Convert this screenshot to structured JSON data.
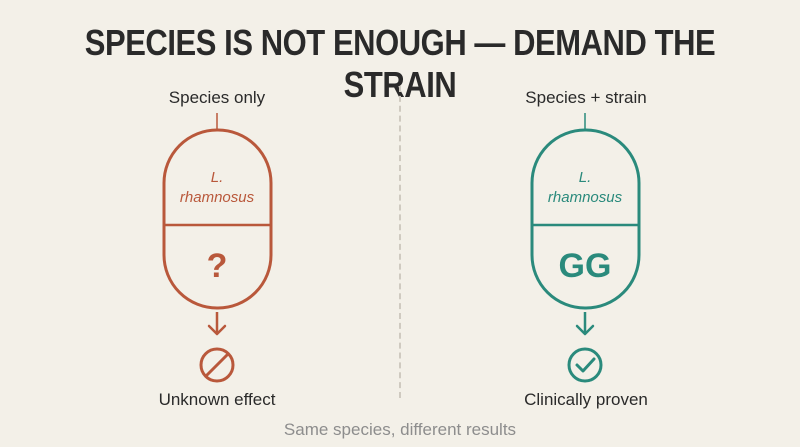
{
  "title": "SPECIES IS NOT ENOUGH — DEMAND THE STRAIN",
  "left": {
    "header": "Species only",
    "genus": "L.",
    "species": "rhamnosus",
    "strain": "?",
    "outcome": "Unknown effect",
    "outcome_icon": "prohibited-icon",
    "color": "#b9583b"
  },
  "right": {
    "header": "Species + strain",
    "genus": "L.",
    "species": "rhamnosus",
    "strain": "GG",
    "outcome": "Clinically proven",
    "outcome_icon": "checkmark-circle-icon",
    "color": "#2a8a7c"
  },
  "footer": "Same species, different results"
}
